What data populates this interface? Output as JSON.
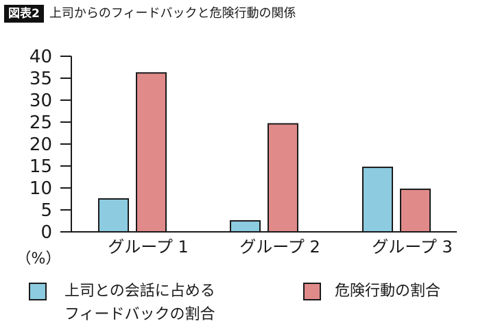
{
  "figure": {
    "badge": "図表2",
    "title": "上司からのフィードバックと危険行動の関係"
  },
  "chart_data": {
    "type": "bar",
    "categories": [
      "グループ 1",
      "グループ 2",
      "グループ 3"
    ],
    "series": [
      {
        "name": "上司との会話に占める\nフィードバックの割合",
        "values": [
          7.5,
          2.5,
          14.7
        ],
        "color": "#8ccbe0"
      },
      {
        "name": "危険行動の割合",
        "values": [
          36.2,
          24.6,
          9.7
        ],
        "color": "#e08a8a"
      }
    ],
    "ylabel": "（%）",
    "ylim": [
      0,
      40
    ],
    "yticks": [
      0,
      5,
      10,
      15,
      20,
      25,
      30,
      35,
      40
    ],
    "grid": false,
    "legend_position": "bottom"
  }
}
